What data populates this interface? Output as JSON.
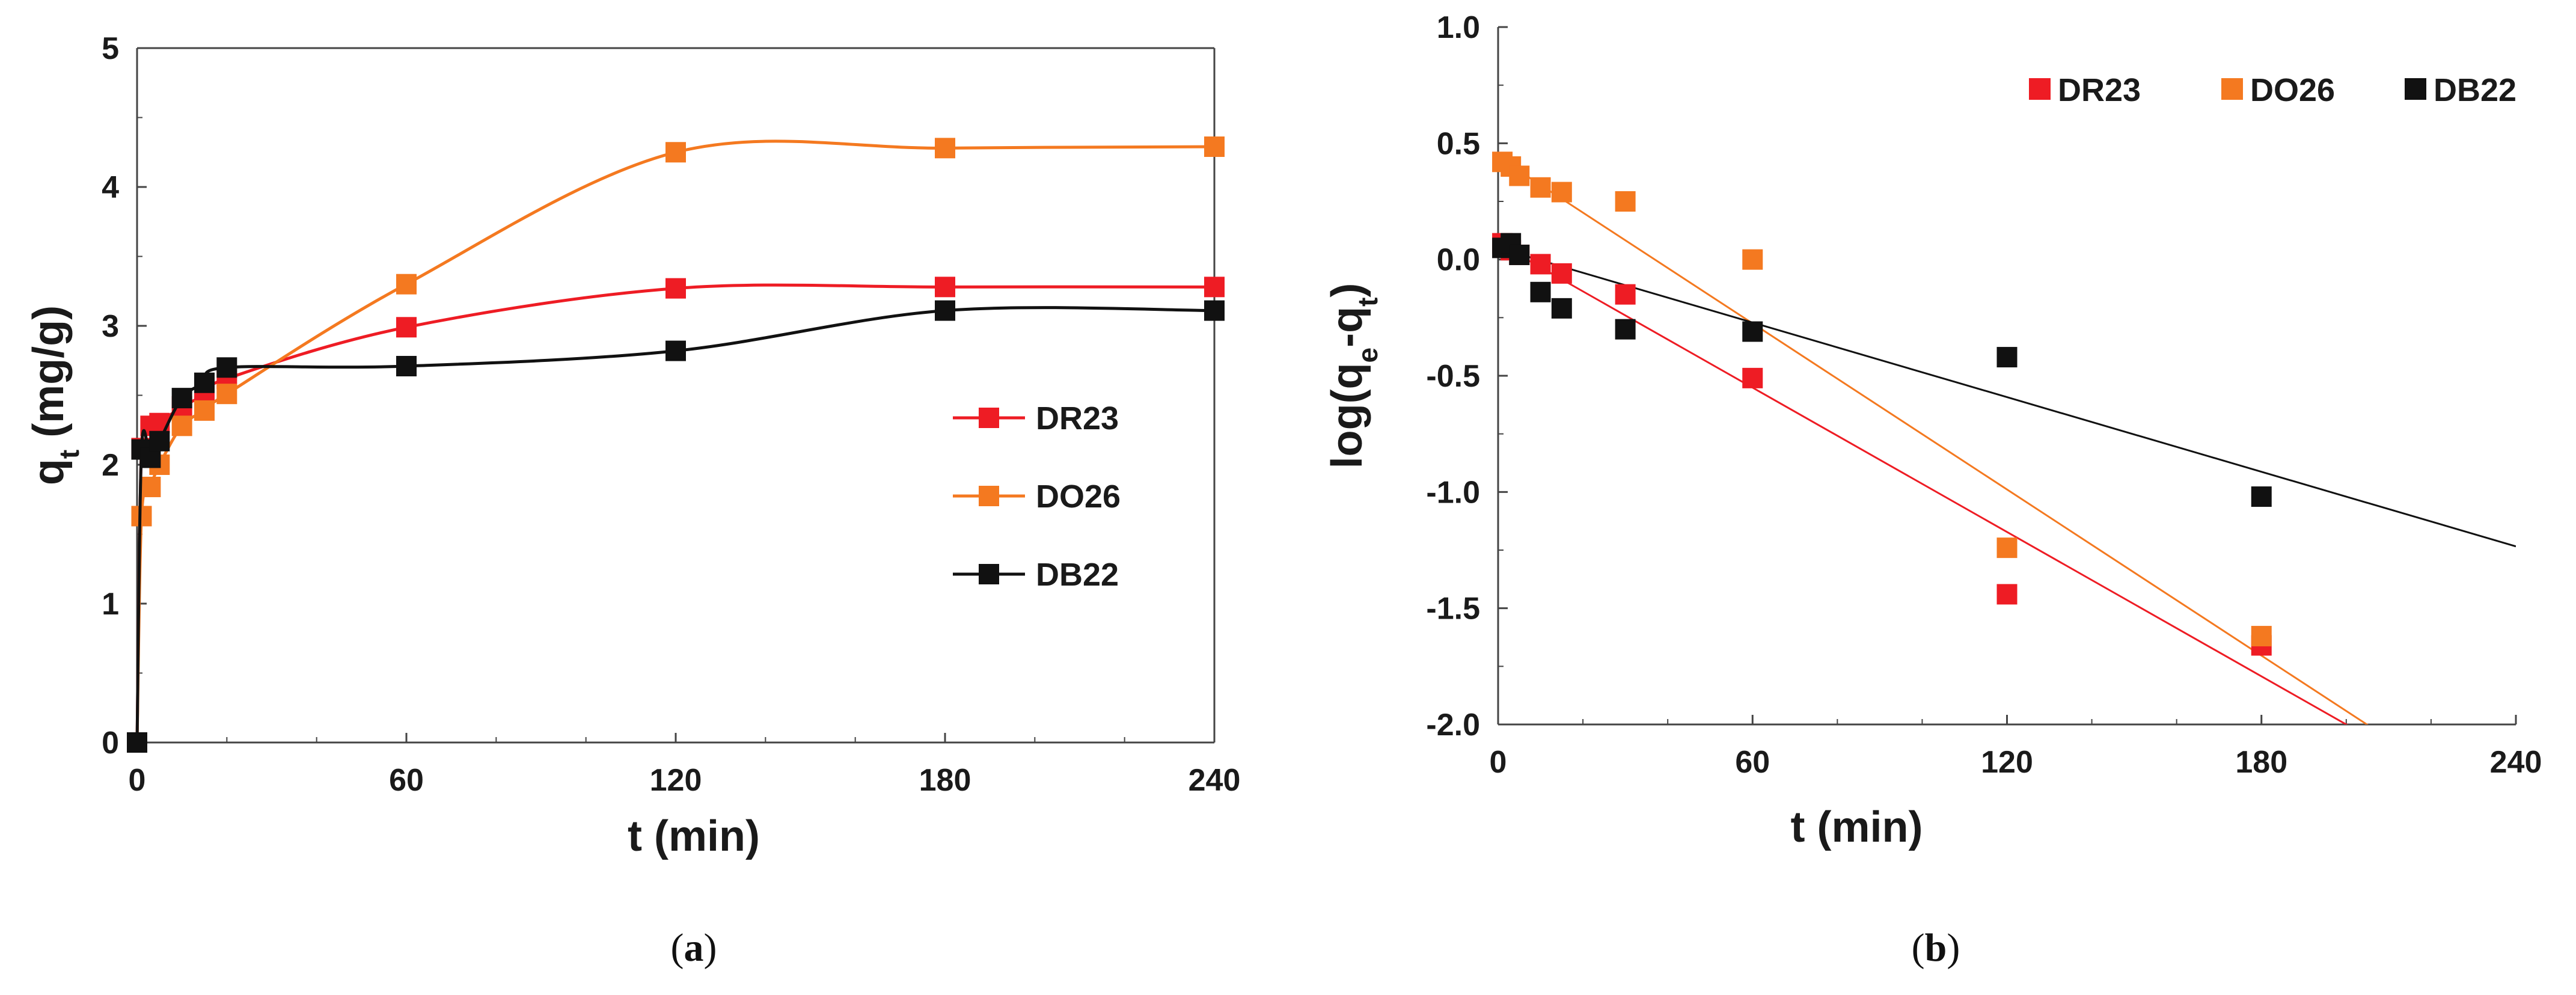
{
  "chart_data": [
    {
      "id": "a",
      "type": "line",
      "caption": "a",
      "xlabel": "t (min)",
      "ylabel": {
        "main": "q",
        "sub": "t",
        "rest": " (mg/g)"
      },
      "xlim": [
        0,
        240
      ],
      "ylim": [
        0,
        5
      ],
      "xticks": [
        0,
        60,
        120,
        180,
        240
      ],
      "yticks": [
        0,
        1,
        2,
        3,
        4,
        5
      ],
      "legend_position": "center-right",
      "grid": false,
      "series": [
        {
          "name": "DR23",
          "color": "#ee1c24",
          "x": [
            0,
            1,
            3,
            5,
            10,
            15,
            20,
            60,
            120,
            180,
            240
          ],
          "y": [
            0,
            2.12,
            2.28,
            2.3,
            2.42,
            2.5,
            2.62,
            2.99,
            3.27,
            3.28,
            3.28
          ]
        },
        {
          "name": "DO26",
          "color": "#f47920",
          "x": [
            0,
            1,
            3,
            5,
            10,
            15,
            20,
            60,
            120,
            180,
            240
          ],
          "y": [
            0,
            1.63,
            1.84,
            2.0,
            2.28,
            2.39,
            2.51,
            3.3,
            4.25,
            4.28,
            4.29
          ]
        },
        {
          "name": "DB22",
          "color": "#111111",
          "x": [
            0,
            1,
            3,
            5,
            10,
            15,
            20,
            60,
            120,
            180,
            240
          ],
          "y": [
            0,
            2.11,
            2.05,
            2.17,
            2.48,
            2.59,
            2.7,
            2.71,
            2.82,
            3.11,
            3.11
          ]
        }
      ]
    },
    {
      "id": "b",
      "type": "scatter",
      "caption": "b",
      "xlabel": "t (min)",
      "ylabel": {
        "main": "log(q",
        "sub1": "e",
        "mid": "-q",
        "sub2": "t",
        "rest": ")"
      },
      "xlim": [
        0,
        240
      ],
      "ylim": [
        -2.0,
        1.0
      ],
      "xticks": [
        0,
        60,
        120,
        180,
        240
      ],
      "yticks": [
        "1.0",
        "0.5",
        "0.0",
        "-0.5",
        "-1.0",
        "-1.5",
        "-2.0"
      ],
      "legend_position": "top-right",
      "grid": false,
      "series": [
        {
          "name": "DR23",
          "color": "#ee1c24",
          "x": [
            1,
            3,
            5,
            10,
            15,
            30,
            60,
            120,
            180
          ],
          "y": [
            0.07,
            0.04,
            0.02,
            -0.02,
            -0.06,
            -0.15,
            -0.51,
            -1.44,
            -1.66
          ],
          "fit": {
            "slope": -0.01035,
            "intercept": 0.07
          }
        },
        {
          "name": "DO26",
          "color": "#f47920",
          "x": [
            1,
            3,
            5,
            10,
            15,
            30,
            60,
            120,
            180
          ],
          "y": [
            0.42,
            0.4,
            0.36,
            0.31,
            0.29,
            0.25,
            0.0,
            -1.24,
            -1.62
          ],
          "fit": {
            "slope": -0.01191,
            "intercept": 0.44
          }
        },
        {
          "name": "DB22",
          "color": "#111111",
          "x": [
            1,
            3,
            5,
            10,
            15,
            30,
            60,
            120,
            180
          ],
          "y": [
            0.05,
            0.07,
            0.02,
            -0.14,
            -0.21,
            -0.3,
            -0.31,
            -0.42,
            -1.02
          ],
          "fit": {
            "slope": -0.00535,
            "intercept": 0.05
          }
        }
      ]
    }
  ]
}
